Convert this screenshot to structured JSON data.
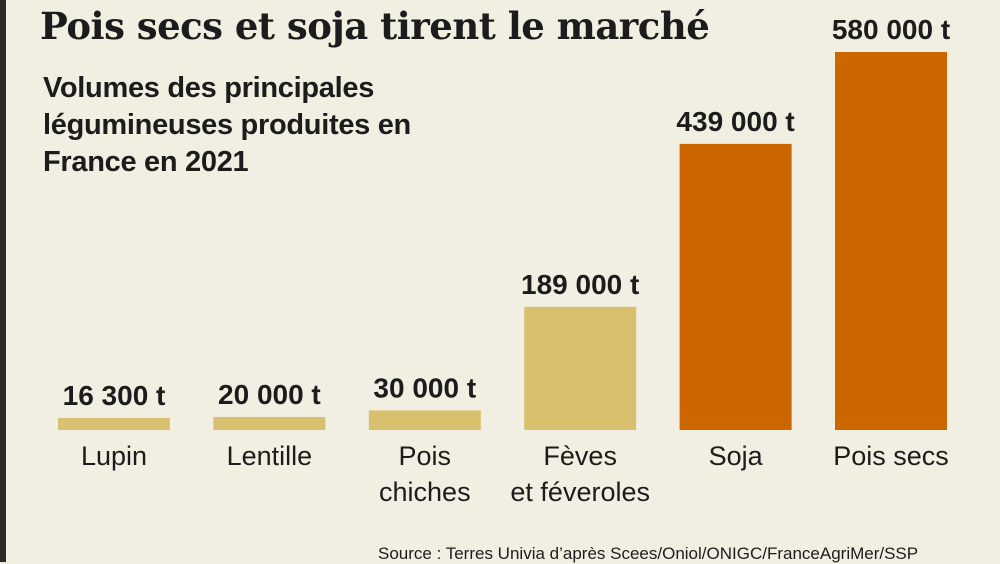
{
  "title": "Pois secs et soja tirent le marché",
  "subtitle": "Volumes des principales légumineuses produites en France en 2021",
  "source": "Source : Terres Univia d’après Scees/Oniol/ONIGC/FranceAgriMer/SSP",
  "colors": {
    "background": "#f1efe2",
    "minor": "#d8c06e",
    "major": "#cc6600",
    "text": "#1c1c1c"
  },
  "chart_data": {
    "type": "bar",
    "title": "Pois secs et soja tirent le marché",
    "subtitle": "Volumes des principales légumineuses produites en France en 2021",
    "unit": "t",
    "categories": [
      "Lupin",
      "Lentille",
      "Pois chiches",
      "Fèves et féveroles",
      "Soja",
      "Pois secs"
    ],
    "category_lines": [
      [
        "Lupin"
      ],
      [
        "Lentille"
      ],
      [
        "Pois",
        "chiches"
      ],
      [
        "Fèves",
        "et féveroles"
      ],
      [
        "Soja"
      ],
      [
        "Pois secs"
      ]
    ],
    "values": [
      16300,
      20000,
      30000,
      189000,
      439000,
      580000
    ],
    "value_labels": [
      "16 300 t",
      "20 000 t",
      "30 000 t",
      "189 000 t",
      "439 000 t",
      "580 000 t"
    ],
    "bar_colors": [
      "#d8c06e",
      "#d8c06e",
      "#d8c06e",
      "#d8c06e",
      "#cc6600",
      "#cc6600"
    ],
    "ylim": [
      0,
      580000
    ],
    "grid": false,
    "legend": "none"
  }
}
